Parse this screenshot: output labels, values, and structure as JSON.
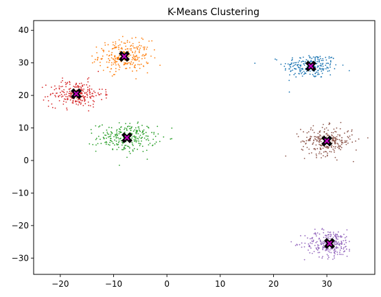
{
  "chart_data": {
    "type": "scatter",
    "title": "K-Means Clustering",
    "xlabel": "",
    "ylabel": "",
    "xlim": [
      -25,
      39
    ],
    "ylim": [
      -35,
      43
    ],
    "xticks": [
      -20,
      -10,
      0,
      10,
      20,
      30
    ],
    "yticks": [
      -30,
      -20,
      -10,
      0,
      10,
      20,
      30,
      40
    ],
    "grid": false,
    "legend": "none",
    "clusters": [
      {
        "color": "#1f77b4",
        "center": [
          27,
          29
        ],
        "spread": [
          2.6,
          1.9
        ],
        "n": 220
      },
      {
        "color": "#ff7f0e",
        "center": [
          -8,
          32
        ],
        "spread": [
          2.4,
          2.4
        ],
        "n": 260
      },
      {
        "color": "#2ca02c",
        "center": [
          -7.5,
          7
        ],
        "spread": [
          2.8,
          2.2
        ],
        "n": 250
      },
      {
        "color": "#d62728",
        "center": [
          -17,
          20.5
        ],
        "spread": [
          2.5,
          2.0
        ],
        "n": 240
      },
      {
        "color": "#9467bd",
        "center": [
          30.5,
          -25.5
        ],
        "spread": [
          2.3,
          2.1
        ],
        "n": 250
      },
      {
        "color": "#8c564b",
        "center": [
          30,
          6
        ],
        "spread": [
          2.4,
          2.2
        ],
        "n": 250
      }
    ],
    "centroids": [
      {
        "x": 27,
        "y": 29
      },
      {
        "x": -8,
        "y": 32
      },
      {
        "x": -7.5,
        "y": 7
      },
      {
        "x": -17,
        "y": 20.5
      },
      {
        "x": 30.5,
        "y": -25.5
      },
      {
        "x": 30,
        "y": 6
      }
    ],
    "centroid_marker": {
      "edge_color": "#000000",
      "fill_color": "#bf00bf"
    }
  }
}
